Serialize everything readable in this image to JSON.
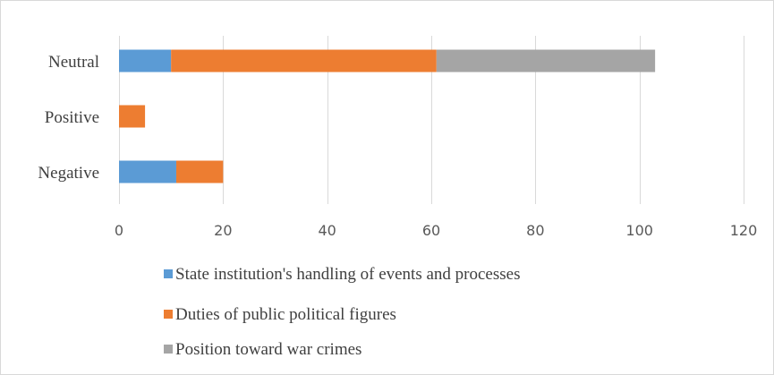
{
  "chart_data": {
    "type": "bar",
    "orientation": "horizontal",
    "stacked": true,
    "categories": [
      "Neutral",
      "Positive",
      "Negative"
    ],
    "series": [
      {
        "name": "State institution's handling of events and processes",
        "color": "#5b9bd5",
        "values": [
          10,
          0,
          11
        ]
      },
      {
        "name": "Duties of public political figures",
        "color": "#ed7d31",
        "values": [
          51,
          5,
          9
        ]
      },
      {
        "name": "Position toward war crimes",
        "color": "#a5a5a5",
        "values": [
          42,
          0,
          0
        ]
      }
    ],
    "xlim": [
      0,
      120
    ],
    "xticks": [
      "0",
      "20",
      "40",
      "60",
      "80",
      "100",
      "120"
    ],
    "grid": true,
    "legend_position": "bottom",
    "title": "",
    "xlabel": "",
    "ylabel": ""
  }
}
